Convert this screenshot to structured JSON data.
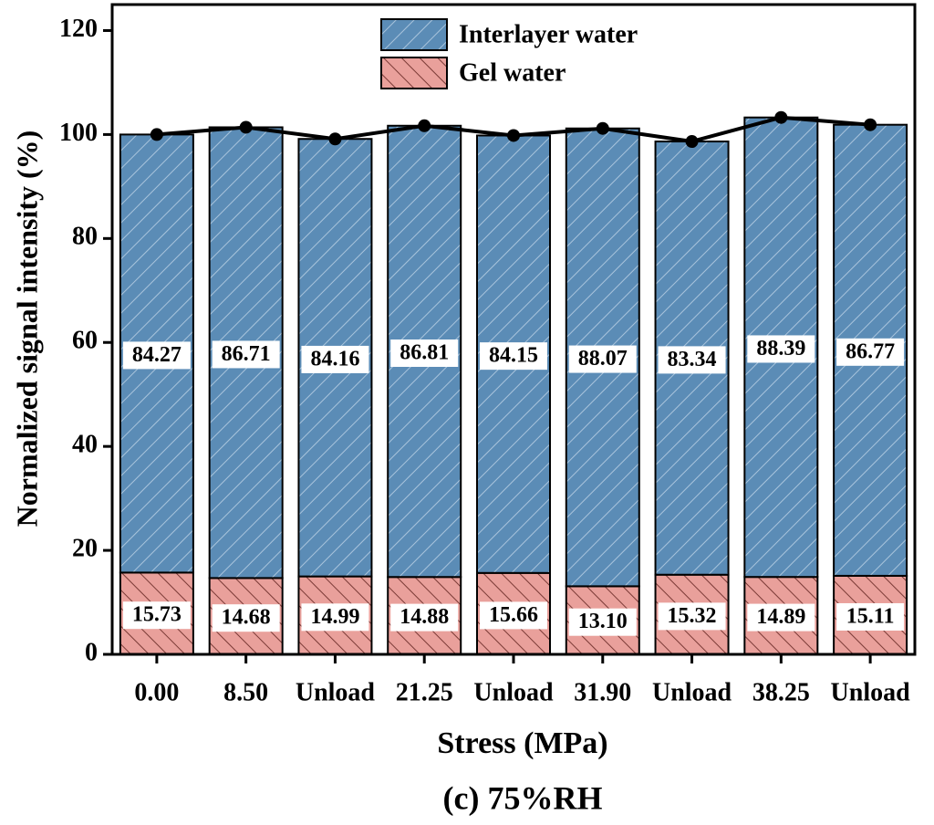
{
  "chart_data": {
    "type": "bar",
    "stacked": true,
    "title": "(c) 75%RH",
    "x_label": "Stress (MPa)",
    "y_label": "Normalized signal intensity (%)",
    "categories": [
      "0.00",
      "8.50",
      "Unload",
      "21.25",
      "Unload",
      "31.90",
      "Unload",
      "38.25",
      "Unload"
    ],
    "series": [
      {
        "name": "Interlayer water",
        "color": "#5b8cb6",
        "hatch_color": "#a9c4dc",
        "values": [
          84.27,
          86.71,
          84.16,
          86.81,
          84.15,
          88.07,
          83.34,
          88.39,
          86.77
        ],
        "value_labels": [
          "84.27",
          "86.71",
          "84.16",
          "86.81",
          "84.15",
          "88.07",
          "83.34",
          "88.39",
          "86.77"
        ]
      },
      {
        "name": "Gel water",
        "color": "#e9a09b",
        "hatch_color": "#7a3a36",
        "values": [
          15.73,
          14.68,
          14.99,
          14.88,
          15.66,
          13.1,
          15.32,
          14.89,
          15.11
        ],
        "value_labels": [
          "15.73",
          "14.68",
          "14.99",
          "14.88",
          "15.66",
          "13.10",
          "15.32",
          "14.89",
          "15.11"
        ]
      }
    ],
    "total_line": {
      "color": "#000000",
      "values": [
        100.0,
        101.39,
        99.15,
        101.69,
        99.81,
        101.17,
        98.66,
        103.28,
        101.88
      ]
    },
    "ylim": [
      0,
      125
    ],
    "yticks": [
      0,
      20,
      40,
      60,
      80,
      100,
      120
    ],
    "legend": "top"
  }
}
